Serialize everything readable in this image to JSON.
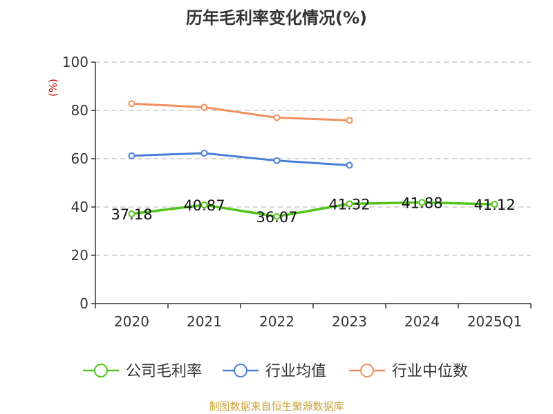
{
  "title": "历年毛利率变化情况(%)",
  "footer": "制图数据来自恒生聚源数据库",
  "chart_data": {
    "type": "line",
    "title": "历年毛利率变化情况(%)",
    "ylabel": "(%)",
    "xlabel": "",
    "ylim": [
      0,
      100
    ],
    "yticks": [
      0,
      20,
      40,
      60,
      80,
      100
    ],
    "categories": [
      "2020",
      "2021",
      "2022",
      "2023",
      "2024",
      "2025Q1"
    ],
    "grid": true,
    "legend_position": "bottom",
    "series": [
      {
        "name": "公司毛利率",
        "color": "#52c41a",
        "values": [
          37.18,
          40.87,
          36.07,
          41.32,
          41.88,
          41.12
        ],
        "labels": [
          "37.18",
          "40.87",
          "36.07",
          "41.32",
          "41.88",
          "41.12"
        ]
      },
      {
        "name": "行业均值",
        "color": "#4a7fd8",
        "values": [
          61.2,
          62.3,
          59.2,
          57.3,
          null,
          null
        ]
      },
      {
        "name": "行业中位数",
        "color": "#f28e5c",
        "values": [
          82.8,
          81.3,
          77.0,
          75.9,
          null,
          null
        ]
      }
    ]
  }
}
